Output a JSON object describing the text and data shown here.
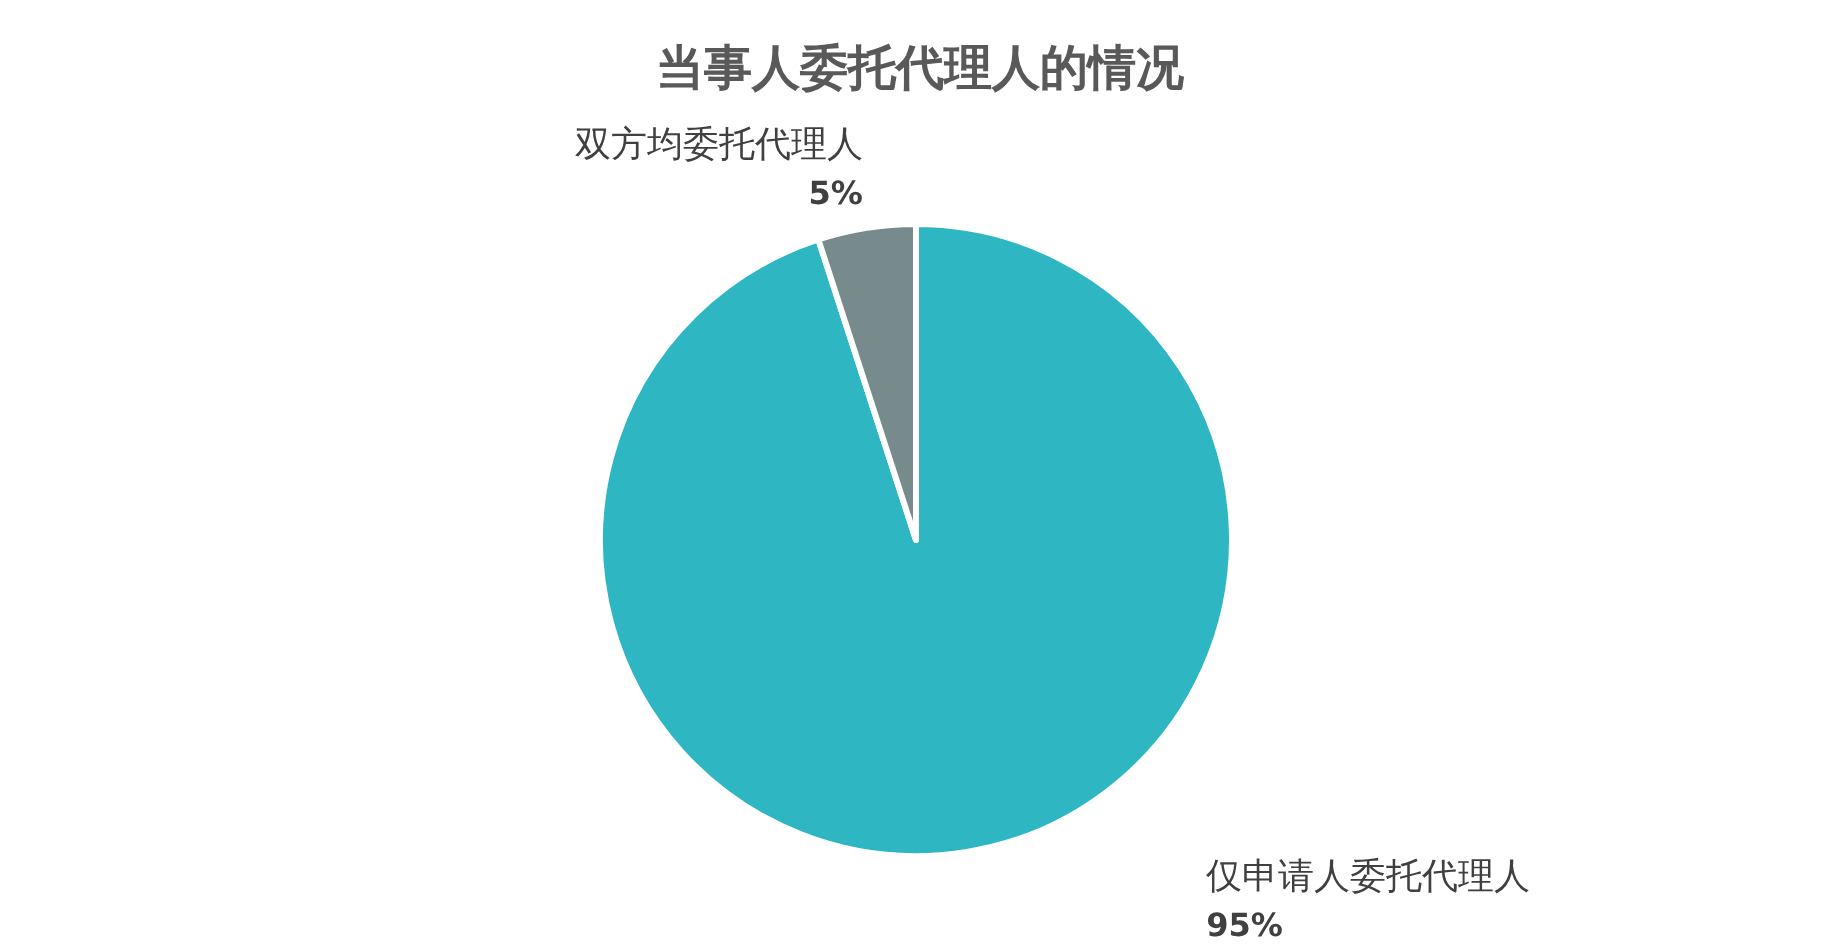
{
  "chart_data": {
    "type": "pie",
    "title": "当事人委托代理人的情况",
    "categories": [
      "仅申请人委托代理人",
      "双方均委托代理人"
    ],
    "values": [
      95,
      5
    ],
    "colors": [
      "#2eb7c3",
      "#778a8c"
    ],
    "value_labels": [
      "95%",
      "5%"
    ]
  }
}
